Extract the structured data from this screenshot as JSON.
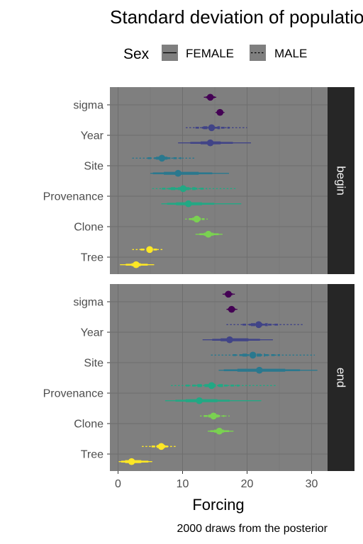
{
  "chart_data": {
    "type": "interval",
    "title": "Standard deviation of populations",
    "xlabel": "Forcing",
    "ylabel": "",
    "caption": "2000 draws from the posterior",
    "xlim": [
      -1.2,
      36.5
    ],
    "xticks": [
      "0",
      "10",
      "20",
      "30"
    ],
    "xtick_values": [
      0,
      10,
      20,
      30
    ],
    "categories": [
      "sigma",
      "Year",
      "Site",
      "Provenance",
      "Clone",
      "Tree"
    ],
    "legend": {
      "title": "Sex",
      "entries": [
        {
          "label": "FEMALE",
          "linestyle": "solid"
        },
        {
          "label": "MALE",
          "linestyle": "dotted"
        }
      ]
    },
    "colors": {
      "sigma": "#440154",
      "Year": "#414487",
      "Site": "#2a788e",
      "Provenance": "#22a884",
      "Clone": "#7ad151",
      "Tree": "#fde725"
    },
    "panel_background": "#7f7f7f",
    "strip_background": "#262626",
    "grid": true,
    "panels": [
      {
        "label": "begin",
        "rows": [
          {
            "param": "sigma",
            "sex": "MALE",
            "median": 14.3,
            "i50": [
              14.0,
              14.6
            ],
            "i80": [
              13.6,
              15.0
            ],
            "i95": [
              13.3,
              15.3
            ]
          },
          {
            "param": "sigma",
            "sex": "FEMALE",
            "median": 15.8,
            "i50": [
              15.5,
              16.1
            ],
            "i80": [
              15.3,
              16.3
            ],
            "i95": [
              15.1,
              16.5
            ]
          },
          {
            "param": "Year",
            "sex": "MALE",
            "median": 14.5,
            "i50": [
              13.2,
              15.8
            ],
            "i80": [
              12.0,
              17.3
            ],
            "i95": [
              10.5,
              20.0
            ]
          },
          {
            "param": "Year",
            "sex": "FEMALE",
            "median": 14.3,
            "i50": [
              12.8,
              15.9
            ],
            "i80": [
              11.2,
              17.8
            ],
            "i95": [
              9.3,
              20.6
            ]
          },
          {
            "param": "Site",
            "sex": "MALE",
            "median": 6.8,
            "i50": [
              5.9,
              8.0
            ],
            "i80": [
              4.6,
              9.8
            ],
            "i95": [
              2.2,
              12.0
            ]
          },
          {
            "param": "Site",
            "sex": "FEMALE",
            "median": 9.3,
            "i50": [
              7.1,
              12.5
            ],
            "i80": [
              5.4,
              14.6
            ],
            "i95": [
              5.0,
              17.2
            ]
          },
          {
            "param": "Provenance",
            "sex": "MALE",
            "median": 10.1,
            "i50": [
              8.2,
              12.0
            ],
            "i80": [
              6.8,
              13.8
            ],
            "i95": [
              5.3,
              18.5
            ]
          },
          {
            "param": "Provenance",
            "sex": "FEMALE",
            "median": 10.9,
            "i50": [
              9.0,
              13.0
            ],
            "i80": [
              7.6,
              14.9
            ],
            "i95": [
              6.7,
              19.1
            ]
          },
          {
            "param": "Clone",
            "sex": "MALE",
            "median": 12.2,
            "i50": [
              11.5,
              12.8
            ],
            "i80": [
              11.0,
              13.4
            ],
            "i95": [
              10.4,
              13.9
            ]
          },
          {
            "param": "Clone",
            "sex": "FEMALE",
            "median": 14.0,
            "i50": [
              13.3,
              14.8
            ],
            "i80": [
              12.6,
              15.6
            ],
            "i95": [
              12.0,
              16.2
            ]
          },
          {
            "param": "Tree",
            "sex": "MALE",
            "median": 4.9,
            "i50": [
              4.4,
              5.5
            ],
            "i80": [
              3.5,
              6.2
            ],
            "i95": [
              2.2,
              7.1
            ]
          },
          {
            "param": "Tree",
            "sex": "FEMALE",
            "median": 2.8,
            "i50": [
              2.1,
              3.5
            ],
            "i80": [
              1.2,
              4.6
            ],
            "i95": [
              0.3,
              5.6
            ]
          }
        ]
      },
      {
        "label": "end",
        "rows": [
          {
            "param": "sigma",
            "sex": "MALE",
            "median": 17.1,
            "i50": [
              16.8,
              17.4
            ],
            "i80": [
              16.5,
              17.8
            ],
            "i95": [
              16.2,
              18.1
            ]
          },
          {
            "param": "sigma",
            "sex": "FEMALE",
            "median": 17.6,
            "i50": [
              17.3,
              17.9
            ],
            "i80": [
              17.0,
              18.2
            ],
            "i95": [
              16.8,
              18.5
            ]
          },
          {
            "param": "Year",
            "sex": "MALE",
            "median": 21.8,
            "i50": [
              20.6,
              23.2
            ],
            "i80": [
              19.3,
              25.2
            ],
            "i95": [
              16.8,
              28.6
            ]
          },
          {
            "param": "Year",
            "sex": "FEMALE",
            "median": 17.3,
            "i50": [
              15.9,
              20.2
            ],
            "i80": [
              14.6,
              22.0
            ],
            "i95": [
              13.1,
              24.0
            ]
          },
          {
            "param": "Site",
            "sex": "MALE",
            "median": 20.9,
            "i50": [
              19.3,
              22.8
            ],
            "i80": [
              17.8,
              25.1
            ],
            "i95": [
              14.4,
              30.5
            ]
          },
          {
            "param": "Site",
            "sex": "FEMALE",
            "median": 21.9,
            "i50": [
              18.5,
              25.9
            ],
            "i80": [
              16.4,
              28.2
            ],
            "i95": [
              15.6,
              30.9
            ]
          },
          {
            "param": "Provenance",
            "sex": "MALE",
            "median": 14.5,
            "i50": [
              12.3,
              16.6
            ],
            "i80": [
              10.5,
              18.8
            ],
            "i95": [
              8.2,
              24.7
            ]
          },
          {
            "param": "Provenance",
            "sex": "FEMALE",
            "median": 12.6,
            "i50": [
              10.5,
              15.4
            ],
            "i80": [
              8.9,
              17.3
            ],
            "i95": [
              7.3,
              22.2
            ]
          },
          {
            "param": "Clone",
            "sex": "MALE",
            "median": 14.8,
            "i50": [
              14.0,
              15.6
            ],
            "i80": [
              13.3,
              16.5
            ],
            "i95": [
              12.7,
              17.3
            ]
          },
          {
            "param": "Clone",
            "sex": "FEMALE",
            "median": 15.7,
            "i50": [
              14.9,
              16.4
            ],
            "i80": [
              14.3,
              17.2
            ],
            "i95": [
              13.9,
              17.9
            ]
          },
          {
            "param": "Tree",
            "sex": "MALE",
            "median": 6.7,
            "i50": [
              6.0,
              7.3
            ],
            "i80": [
              5.2,
              8.2
            ],
            "i95": [
              3.7,
              9.1
            ]
          },
          {
            "param": "Tree",
            "sex": "FEMALE",
            "median": 2.1,
            "i50": [
              1.1,
              3.6
            ],
            "i80": [
              0.5,
              4.7
            ],
            "i95": [
              0.1,
              5.3
            ]
          }
        ]
      }
    ]
  }
}
